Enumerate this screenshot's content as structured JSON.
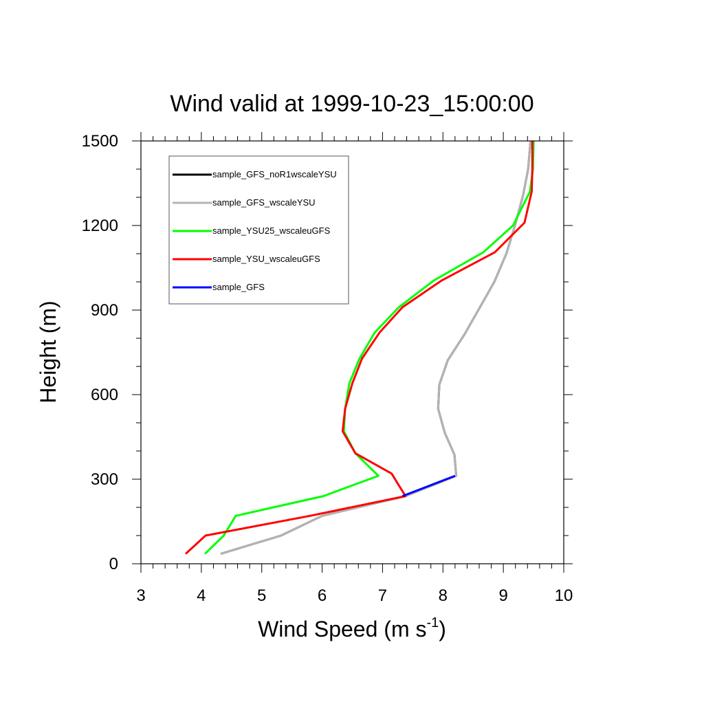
{
  "chart_data": {
    "type": "line",
    "title": "Wind valid at 1999-10-23_15:00:00",
    "xlabel": "Wind Speed (m s",
    "xlabel_sup": "-1",
    "xlabel_suffix": ")",
    "ylabel": "Height (m)",
    "xlim": [
      3,
      10
    ],
    "ylim": [
      0,
      1500
    ],
    "xticks": [
      3,
      4,
      5,
      6,
      7,
      8,
      9,
      10
    ],
    "yticks": [
      0,
      300,
      600,
      900,
      1200,
      1500
    ],
    "grid": false,
    "legend_position": "top-left",
    "series": [
      {
        "name": "sample_GFS_noR1wscaleYSU",
        "color": "#000000",
        "points": [
          [
            4.32,
            35
          ],
          [
            5.32,
            100
          ],
          [
            6.0,
            170
          ],
          [
            7.38,
            240
          ],
          [
            8.22,
            312
          ],
          [
            8.19,
            387
          ],
          [
            8.03,
            465
          ],
          [
            7.92,
            550
          ],
          [
            7.94,
            635
          ],
          [
            8.08,
            722
          ],
          [
            8.36,
            815
          ],
          [
            8.6,
            905
          ],
          [
            8.85,
            1000
          ],
          [
            9.05,
            1100
          ],
          [
            9.2,
            1205
          ],
          [
            9.33,
            1310
          ],
          [
            9.41,
            1400
          ],
          [
            9.45,
            1500
          ]
        ]
      },
      {
        "name": "sample_GFS_wscaleYSU",
        "color": "#b4b4b4",
        "points": [
          [
            4.32,
            35
          ],
          [
            5.32,
            100
          ],
          [
            6.0,
            170
          ],
          [
            7.38,
            240
          ],
          [
            8.22,
            312
          ],
          [
            8.19,
            387
          ],
          [
            8.03,
            465
          ],
          [
            7.92,
            550
          ],
          [
            7.94,
            635
          ],
          [
            8.08,
            722
          ],
          [
            8.36,
            815
          ],
          [
            8.6,
            905
          ],
          [
            8.85,
            1000
          ],
          [
            9.05,
            1100
          ],
          [
            9.2,
            1205
          ],
          [
            9.33,
            1310
          ],
          [
            9.41,
            1400
          ],
          [
            9.45,
            1500
          ]
        ]
      },
      {
        "name": "sample_YSU25_wscaleuGFS",
        "color": "#00ff00",
        "points": [
          [
            4.06,
            35
          ],
          [
            4.37,
            100
          ],
          [
            4.57,
            170
          ],
          [
            6.02,
            240
          ],
          [
            6.93,
            312
          ],
          [
            6.55,
            392
          ],
          [
            6.36,
            470
          ],
          [
            6.38,
            550
          ],
          [
            6.45,
            640
          ],
          [
            6.62,
            728
          ],
          [
            6.87,
            820
          ],
          [
            7.27,
            910
          ],
          [
            7.85,
            1005
          ],
          [
            8.67,
            1105
          ],
          [
            9.16,
            1200
          ],
          [
            9.44,
            1320
          ],
          [
            9.49,
            1400
          ],
          [
            9.5,
            1500
          ]
        ]
      },
      {
        "name": "sample_YSU_wscaleuGFS",
        "color": "#ff0000",
        "points": [
          [
            3.74,
            35
          ],
          [
            4.07,
            100
          ],
          [
            5.8,
            170
          ],
          [
            7.38,
            240
          ],
          [
            7.15,
            320
          ],
          [
            6.55,
            392
          ],
          [
            6.34,
            470
          ],
          [
            6.38,
            550
          ],
          [
            6.5,
            640
          ],
          [
            6.66,
            728
          ],
          [
            6.95,
            820
          ],
          [
            7.33,
            910
          ],
          [
            7.98,
            1005
          ],
          [
            8.86,
            1105
          ],
          [
            9.35,
            1210
          ],
          [
            9.47,
            1320
          ],
          [
            9.48,
            1400
          ],
          [
            9.48,
            1500
          ]
        ]
      },
      {
        "name": "sample_GFS",
        "color": "#0000ff",
        "points": [
          [
            7.33,
            240
          ],
          [
            8.2,
            312
          ]
        ]
      }
    ]
  }
}
